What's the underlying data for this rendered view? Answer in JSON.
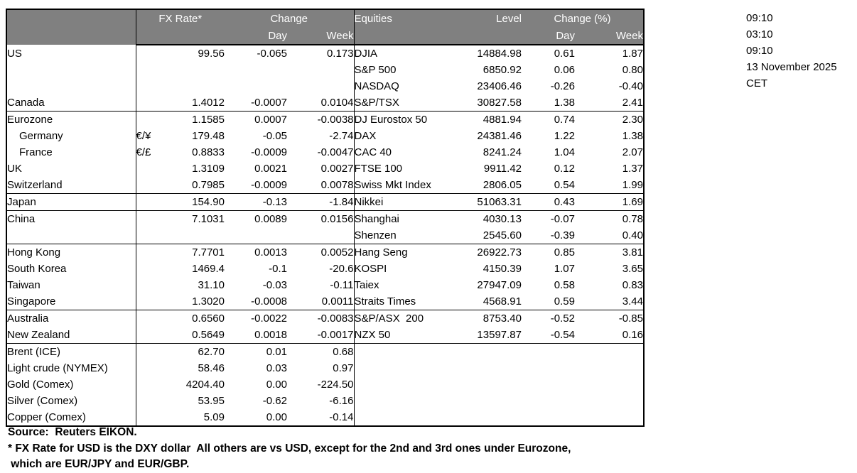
{
  "colors": {
    "header_bg": "#808080",
    "header_text": "#ffffff",
    "border": "#000000"
  },
  "header": {
    "fx": {
      "title": "FX Rate*",
      "change": "Change",
      "day": "Day",
      "week": "Week"
    },
    "equities": {
      "title": "Equities",
      "level": "Level",
      "change": "Change (%)",
      "day": "Day",
      "week": "Week"
    }
  },
  "rows": [
    {
      "fx": {
        "label": "US",
        "sym": "",
        "rate": "99.56",
        "day": "-0.065",
        "week": "0.173"
      },
      "eq": {
        "label": "DJIA",
        "level": "14884.98",
        "day": "0.61",
        "week": "1.87"
      }
    },
    {
      "fx": {
        "label": "",
        "sym": "",
        "rate": "",
        "day": "",
        "week": ""
      },
      "eq": {
        "label": "S&P 500",
        "level": "6850.92",
        "day": "0.06",
        "week": "0.80"
      }
    },
    {
      "fx": {
        "label": "",
        "sym": "",
        "rate": "",
        "day": "",
        "week": ""
      },
      "eq": {
        "label": "NASDAQ",
        "level": "23406.46",
        "day": "-0.26",
        "week": "-0.40"
      }
    },
    {
      "fx": {
        "label": "Canada",
        "sym": "",
        "rate": "1.4012",
        "day": "-0.0007",
        "week": "0.0104"
      },
      "eq": {
        "label": "S&P/TSX",
        "level": "30827.58",
        "day": "1.38",
        "week": "2.41"
      }
    },
    {
      "group_start": true,
      "fx": {
        "label": "Eurozone",
        "sym": "",
        "rate": "1.1585",
        "day": "0.0007",
        "week": "-0.0038"
      },
      "eq": {
        "label": "DJ Eurostox 50",
        "level": "4881.94",
        "day": "0.74",
        "week": "2.30"
      }
    },
    {
      "indent": true,
      "fx": {
        "label": "Germany",
        "sym": "€/¥",
        "rate": "179.48",
        "day": "-0.05",
        "week": "-2.74"
      },
      "eq": {
        "label": "DAX",
        "level": "24381.46",
        "day": "1.22",
        "week": "1.38"
      }
    },
    {
      "indent": true,
      "fx": {
        "label": "France",
        "sym": "€/£",
        "rate": "0.8833",
        "day": "-0.0009",
        "week": "-0.0047"
      },
      "eq": {
        "label": "CAC 40",
        "level": "8241.24",
        "day": "1.04",
        "week": "2.07"
      }
    },
    {
      "fx": {
        "label": "UK",
        "sym": "",
        "rate": "1.3109",
        "day": "0.0021",
        "week": "0.0027"
      },
      "eq": {
        "label": "FTSE 100",
        "level": "9911.42",
        "day": "0.12",
        "week": "1.37"
      }
    },
    {
      "fx": {
        "label": "Switzerland",
        "sym": "",
        "rate": "0.7985",
        "day": "-0.0009",
        "week": "0.0078"
      },
      "eq": {
        "label": "Swiss Mkt Index",
        "level": "2806.05",
        "day": "0.54",
        "week": "1.99"
      }
    },
    {
      "group_start": true,
      "fx": {
        "label": "Japan",
        "sym": "",
        "rate": "154.90",
        "day": "-0.13",
        "week": "-1.84"
      },
      "eq": {
        "label": "Nikkei",
        "level": "51063.31",
        "day": "0.43",
        "week": "1.69"
      }
    },
    {
      "group_start": true,
      "fx": {
        "label": "China",
        "sym": "",
        "rate": "7.1031",
        "day": "0.0089",
        "week": "0.0156"
      },
      "eq": {
        "label": "Shanghai",
        "level": "4030.13",
        "day": "-0.07",
        "week": "0.78"
      }
    },
    {
      "fx": {
        "label": "",
        "sym": "",
        "rate": "",
        "day": "",
        "week": ""
      },
      "eq": {
        "label": "Shenzen",
        "level": "2545.60",
        "day": "-0.39",
        "week": "0.40"
      }
    },
    {
      "group_start": true,
      "fx": {
        "label": "Hong Kong",
        "sym": "",
        "rate": "7.7701",
        "day": "0.0013",
        "week": "0.0052"
      },
      "eq": {
        "label": "Hang Seng",
        "level": "26922.73",
        "day": "0.85",
        "week": "3.81"
      }
    },
    {
      "fx": {
        "label": "South Korea",
        "sym": "",
        "rate": "1469.4",
        "day": "-0.1",
        "week": "-20.6"
      },
      "eq": {
        "label": "KOSPI",
        "level": "4150.39",
        "day": "1.07",
        "week": "3.65"
      }
    },
    {
      "fx": {
        "label": "Taiwan",
        "sym": "",
        "rate": "31.10",
        "day": "-0.03",
        "week": "-0.11"
      },
      "eq": {
        "label": "Taiex",
        "level": "27947.09",
        "day": "0.58",
        "week": "0.83"
      }
    },
    {
      "fx": {
        "label": "Singapore",
        "sym": "",
        "rate": "1.3020",
        "day": "-0.0008",
        "week": "0.0011"
      },
      "eq": {
        "label": "Straits Times",
        "level": "4568.91",
        "day": "0.59",
        "week": "3.44"
      }
    },
    {
      "group_start": true,
      "fx": {
        "label": "Australia",
        "sym": "",
        "rate": "0.6560",
        "day": "-0.0022",
        "week": "-0.0083"
      },
      "eq": {
        "label": "S&P/ASX  200",
        "level": "8753.40",
        "day": "-0.52",
        "week": "-0.85"
      }
    },
    {
      "fx": {
        "label": "New Zealand",
        "sym": "",
        "rate": "0.5649",
        "day": "0.0018",
        "week": "-0.0017"
      },
      "eq": {
        "label": "NZX 50",
        "level": "13597.87",
        "day": "-0.54",
        "week": "0.16"
      }
    },
    {
      "group_start": true,
      "fx": {
        "label": "Brent (ICE)",
        "sym": "",
        "rate": "62.70",
        "day": "0.01",
        "week": "0.68"
      },
      "eq": {
        "label": "",
        "level": "",
        "day": "",
        "week": ""
      }
    },
    {
      "fx": {
        "label": "Light crude (NYMEX)",
        "sym": "",
        "rate": "58.46",
        "day": "0.03",
        "week": "0.97"
      },
      "eq": {
        "label": "",
        "level": "",
        "day": "",
        "week": ""
      }
    },
    {
      "fx": {
        "label": "Gold (Comex)",
        "sym": "",
        "rate": "4204.40",
        "day": "0.00",
        "week": "-224.50"
      },
      "eq": {
        "label": "",
        "level": "",
        "day": "",
        "week": ""
      }
    },
    {
      "fx": {
        "label": "Silver (Comex)",
        "sym": "",
        "rate": "53.95",
        "day": "-0.62",
        "week": "-6.16"
      },
      "eq": {
        "label": "",
        "level": "",
        "day": "",
        "week": ""
      }
    },
    {
      "fx": {
        "label": "Copper (Comex)",
        "sym": "",
        "rate": "5.09",
        "day": "0.00",
        "week": "-0.14"
      },
      "eq": {
        "label": "",
        "level": "",
        "day": "",
        "week": ""
      }
    }
  ],
  "footer": {
    "source": "Source:  Reuters EIKON.",
    "note1": "* FX Rate for USD is the DXY dollar  All others are vs USD, except for the 2nd and 3rd ones under Eurozone,",
    "note2": " which are EUR/JPY and EUR/GBP."
  },
  "timestamps": [
    "09:10",
    "03:10",
    "09:10",
    "13 November 2025",
    "CET"
  ]
}
